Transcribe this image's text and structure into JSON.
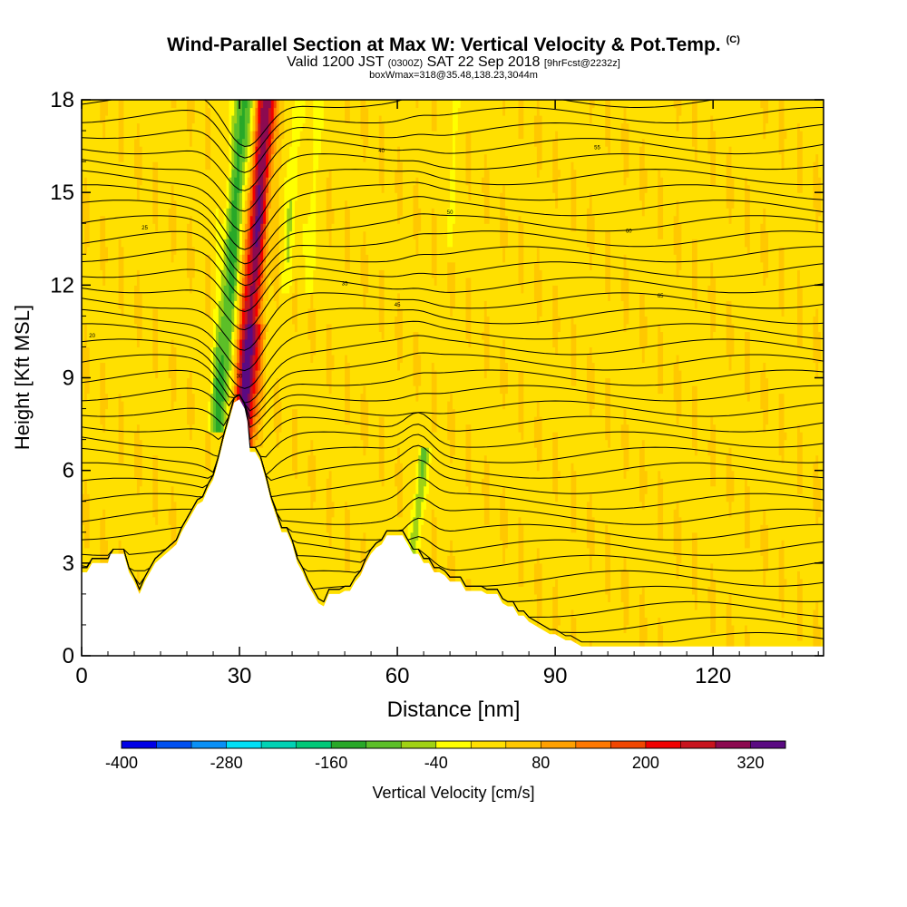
{
  "chart_data": {
    "type": "heatmap",
    "title": "Wind-Parallel Section at Max W: Vertical Velocity & Pot.Temp.",
    "title_mark": "(C)",
    "subtitle_main": "Valid 1200 JST",
    "subtitle_utc": "(0300Z)",
    "subtitle_date": "SAT 22 Sep 2018",
    "subtitle_fcst": "[9hrFcst@2232z]",
    "subtitle2": "boxWmax=318@35.48,138.23,3044m",
    "xlabel": "Distance [nm]",
    "ylabel": "Height [Kft MSL]",
    "xlim": [
      0,
      141
    ],
    "ylim": [
      0,
      18
    ],
    "x_ticks": [
      0,
      30,
      60,
      90,
      120
    ],
    "x_tick_labels": [
      "0",
      "30",
      "60",
      "90",
      "120"
    ],
    "y_ticks": [
      0,
      3,
      6,
      9,
      12,
      15,
      18
    ],
    "y_tick_labels": [
      "0",
      "3",
      "6",
      "9",
      "12",
      "15",
      "18"
    ],
    "grid": false,
    "terrain_kft": [
      [
        0,
        2.7
      ],
      [
        1,
        2.7
      ],
      [
        2,
        3.0
      ],
      [
        5,
        3.0
      ],
      [
        5.5,
        3.3
      ],
      [
        8,
        3.3
      ],
      [
        8.5,
        3.0
      ],
      [
        9,
        2.7
      ],
      [
        10,
        2.4
      ],
      [
        11,
        2.0
      ],
      [
        12,
        2.4
      ],
      [
        13,
        2.7
      ],
      [
        14,
        3.0
      ],
      [
        16,
        3.3
      ],
      [
        18,
        3.6
      ],
      [
        19,
        4.0
      ],
      [
        20,
        4.3
      ],
      [
        21,
        4.6
      ],
      [
        22,
        4.9
      ],
      [
        23,
        5.0
      ],
      [
        24,
        5.4
      ],
      [
        25,
        5.7
      ],
      [
        26,
        6.3
      ],
      [
        27,
        7.0
      ],
      [
        28,
        7.6
      ],
      [
        29,
        8.2
      ],
      [
        30,
        8.3
      ],
      [
        31,
        8.0
      ],
      [
        31.5,
        7.6
      ],
      [
        32,
        6.6
      ],
      [
        33,
        6.6
      ],
      [
        34,
        6.3
      ],
      [
        35,
        5.7
      ],
      [
        36,
        5.0
      ],
      [
        37,
        4.5
      ],
      [
        38,
        4.0
      ],
      [
        39,
        4.0
      ],
      [
        40,
        3.6
      ],
      [
        41,
        3.0
      ],
      [
        42,
        2.7
      ],
      [
        43,
        2.3
      ],
      [
        44,
        2.0
      ],
      [
        45,
        1.7
      ],
      [
        46,
        1.6
      ],
      [
        47,
        2.0
      ],
      [
        48,
        2.0
      ],
      [
        49,
        2.0
      ],
      [
        50,
        2.1
      ],
      [
        51,
        2.1
      ],
      [
        52,
        2.4
      ],
      [
        53,
        2.6
      ],
      [
        54,
        3.0
      ],
      [
        55,
        3.3
      ],
      [
        56,
        3.5
      ],
      [
        57,
        3.6
      ],
      [
        58,
        3.9
      ],
      [
        59,
        3.9
      ],
      [
        60,
        3.9
      ],
      [
        61,
        3.9
      ],
      [
        62,
        3.6
      ],
      [
        63,
        3.3
      ],
      [
        64,
        3.3
      ],
      [
        65,
        3.0
      ],
      [
        66,
        3.0
      ],
      [
        67,
        2.7
      ],
      [
        68,
        2.7
      ],
      [
        69,
        2.6
      ],
      [
        70,
        2.4
      ],
      [
        71,
        2.4
      ],
      [
        72,
        2.4
      ],
      [
        73,
        2.1
      ],
      [
        74,
        2.1
      ],
      [
        75,
        2.1
      ],
      [
        76,
        2.1
      ],
      [
        77,
        2.0
      ],
      [
        78,
        2.0
      ],
      [
        79,
        2.0
      ],
      [
        80,
        1.7
      ],
      [
        81,
        1.6
      ],
      [
        82,
        1.6
      ],
      [
        83,
        1.3
      ],
      [
        84,
        1.3
      ],
      [
        85,
        1.1
      ],
      [
        86,
        1.0
      ],
      [
        87,
        0.9
      ],
      [
        88,
        0.8
      ],
      [
        89,
        0.7
      ],
      [
        90,
        0.7
      ],
      [
        91,
        0.6
      ],
      [
        92,
        0.5
      ],
      [
        93,
        0.5
      ],
      [
        94,
        0.4
      ],
      [
        95,
        0.3
      ],
      [
        96,
        0.3
      ],
      [
        97,
        0.3
      ],
      [
        141,
        0.3
      ]
    ],
    "features": [
      {
        "x0": 30.5,
        "x1": 35.5,
        "z0": 7.0,
        "z1": 18,
        "lean": -4,
        "w": 320,
        "width": 3.0
      },
      {
        "x0": 26.0,
        "x1": 31.0,
        "z0": 7.5,
        "z1": 18,
        "lean": -5,
        "w": -160,
        "width": 2.5
      },
      {
        "x0": 33.5,
        "x1": 37.0,
        "z0": 11,
        "z1": 18,
        "lean": -2,
        "w": -90,
        "width": 2.0
      },
      {
        "x0": 39.0,
        "x1": 41.0,
        "z0": 12,
        "z1": 18,
        "lean": -1,
        "w": -60,
        "width": 1.5
      },
      {
        "x0": 43.5,
        "x1": 44.5,
        "z0": 12,
        "z1": 18,
        "lean": -1,
        "w": -50,
        "width": 1.2
      },
      {
        "x0": 63.0,
        "x1": 65.0,
        "z0": 3.3,
        "z1": 6.5,
        "lean": -2,
        "w": -100,
        "width": 1.5
      },
      {
        "x0": 70.0,
        "x1": 71.0,
        "z0": 13,
        "z1": 18,
        "lean": 0,
        "w": -45,
        "width": 1.0
      }
    ],
    "theta_contour_labels": [
      "20",
      "25",
      "30",
      "35",
      "40",
      "45",
      "50",
      "55",
      "60",
      "65"
    ],
    "colorbar": {
      "label": "Vertical Velocity [cm/s]",
      "levels": [
        -400,
        -360,
        -320,
        -280,
        -240,
        -200,
        -160,
        -120,
        -80,
        -40,
        0,
        40,
        80,
        120,
        160,
        200,
        240,
        280,
        320,
        360
      ],
      "tick_labels": [
        "-400",
        "-280",
        "-160",
        "-40",
        "80",
        "200",
        "320"
      ],
      "colors": [
        "#0000e6",
        "#0050f0",
        "#0a90f5",
        "#00e0f5",
        "#00d2b4",
        "#00c878",
        "#28a828",
        "#5cbf28",
        "#a0d214",
        "#ffff00",
        "#ffe000",
        "#ffc800",
        "#ffa000",
        "#ff7800",
        "#f04600",
        "#f00000",
        "#c8141e",
        "#8c0a50",
        "#5a0a82"
      ]
    }
  }
}
